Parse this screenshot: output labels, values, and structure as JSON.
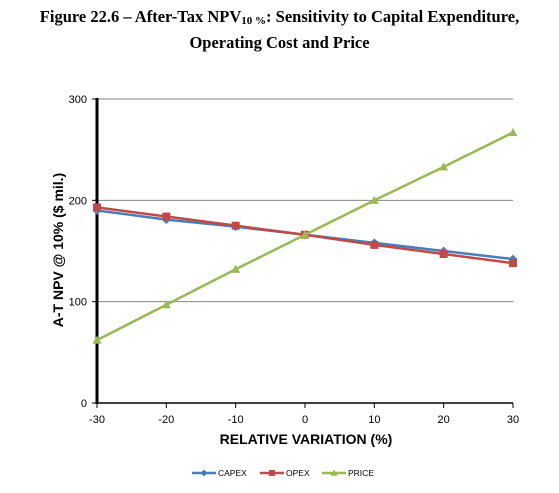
{
  "figure": {
    "title_prefix": "Figure 22.6 – After-Tax NPV",
    "title_sub": "10 %",
    "title_suffix": ": Sensitivity to Capital Expenditure,",
    "title_line2": "Operating Cost and Price"
  },
  "chart_data": {
    "type": "line",
    "title": "Figure 22.6 – After-Tax NPV10 %: Sensitivity to Capital Expenditure, Operating Cost and Price",
    "xlabel": "RELATIVE VARIATION (%)",
    "ylabel": "A-T NPV @ 10% ($ mil.)",
    "x": [
      -30,
      -20,
      -10,
      0,
      10,
      20,
      30
    ],
    "xlim": [
      -30,
      30
    ],
    "ylim": [
      0,
      300
    ],
    "xticks": [
      -30,
      -20,
      -10,
      0,
      10,
      20,
      30
    ],
    "yticks": [
      0,
      100,
      200,
      300
    ],
    "grid": "horizontal",
    "legend_position": "bottom",
    "series": [
      {
        "name": "CAPEX",
        "color": "#4a7ebb",
        "marker": "diamond",
        "values": [
          190,
          181,
          174,
          166,
          158,
          150,
          142
        ]
      },
      {
        "name": "OPEX",
        "color": "#be4b48",
        "marker": "square",
        "values": [
          193,
          184,
          175,
          166,
          156,
          147,
          138
        ]
      },
      {
        "name": "PRICE",
        "color": "#98b954",
        "marker": "triangle",
        "values": [
          62,
          97,
          132,
          166,
          200,
          233,
          267
        ]
      }
    ]
  }
}
